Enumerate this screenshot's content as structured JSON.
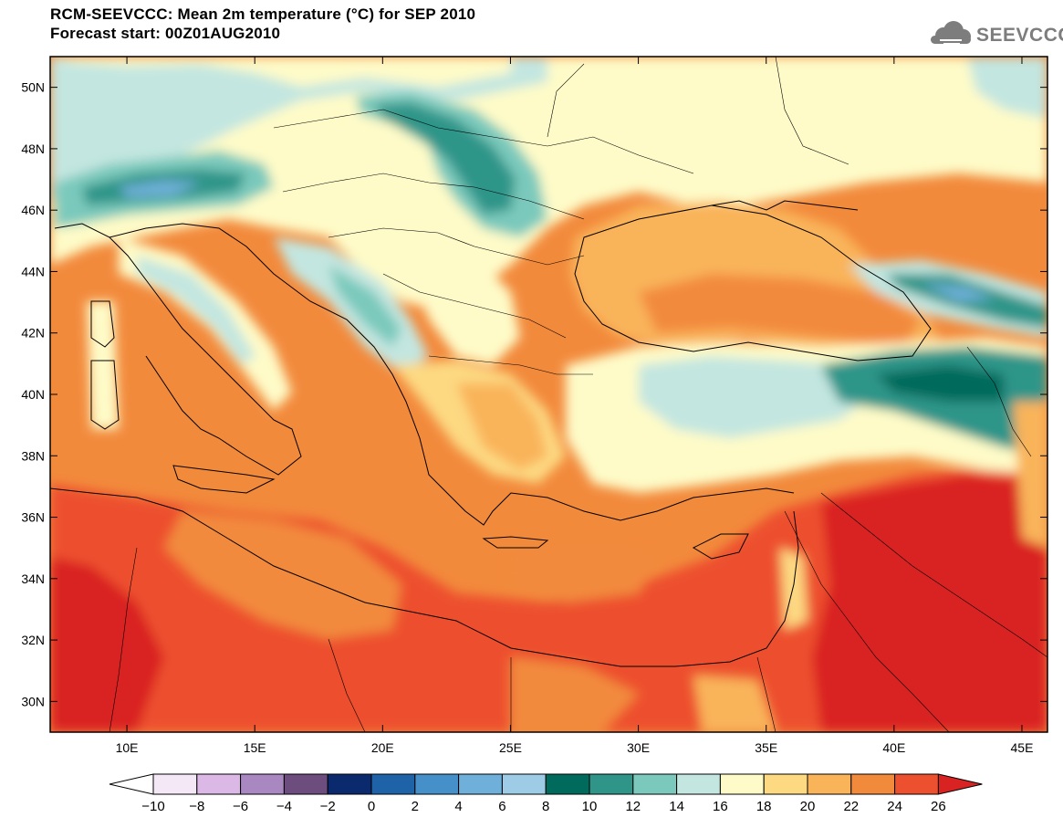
{
  "header": {
    "title_line1": "RCM-SEEVCCC: Mean 2m temperature (°C) for SEP 2010",
    "title_line2": "Forecast start: 00Z01AUG2010"
  },
  "logo": {
    "text": "SEEVCCC",
    "icon": "cloud-icon"
  },
  "map": {
    "lon_range": [
      7,
      46
    ],
    "lat_range": [
      29,
      51
    ],
    "lon_ticks": [
      {
        "value": 10,
        "label": "10E"
      },
      {
        "value": 15,
        "label": "15E"
      },
      {
        "value": 20,
        "label": "20E"
      },
      {
        "value": 25,
        "label": "25E"
      },
      {
        "value": 30,
        "label": "30E"
      },
      {
        "value": 35,
        "label": "35E"
      },
      {
        "value": 40,
        "label": "40E"
      },
      {
        "value": 45,
        "label": "45E"
      }
    ],
    "lat_ticks": [
      {
        "value": 30,
        "label": "30N"
      },
      {
        "value": 32,
        "label": "32N"
      },
      {
        "value": 34,
        "label": "34N"
      },
      {
        "value": 36,
        "label": "36N"
      },
      {
        "value": 38,
        "label": "38N"
      },
      {
        "value": 40,
        "label": "40N"
      },
      {
        "value": 42,
        "label": "42N"
      },
      {
        "value": 44,
        "label": "44N"
      },
      {
        "value": 46,
        "label": "46N"
      },
      {
        "value": 48,
        "label": "48N"
      },
      {
        "value": 50,
        "label": "50N"
      }
    ]
  },
  "colorbar": {
    "labels": [
      "−10",
      "−8",
      "−6",
      "−4",
      "−2",
      "0",
      "2",
      "4",
      "6",
      "8",
      "10",
      "12",
      "14",
      "16",
      "18",
      "20",
      "22",
      "24",
      "26"
    ],
    "colors": [
      "#f4e8f7",
      "#dcb8e6",
      "#a988c2",
      "#6d4c7e",
      "#0b2a6e",
      "#1e62a8",
      "#4590c8",
      "#6fb0da",
      "#9ecbe6",
      "#006b5c",
      "#2f9589",
      "#7ac9bc",
      "#c3e6e0",
      "#fefbc8",
      "#fdd982",
      "#f9b45a",
      "#f28a3c",
      "#ed502e"
    ],
    "under_color": "#ffffff",
    "over_color": "#d92323"
  },
  "palette": {
    "t16": "#c3e6e0",
    "t18": "#fefbc8",
    "t20": "#fdd982",
    "t22": "#f9b45a",
    "t24": "#f28a3c",
    "t26": "#ed502e",
    "t28": "#d92323",
    "t10": "#006b5c",
    "t12": "#2f9589",
    "t14": "#7ac9bc",
    "t8": "#9ecbe6",
    "t6": "#6fb0da"
  }
}
